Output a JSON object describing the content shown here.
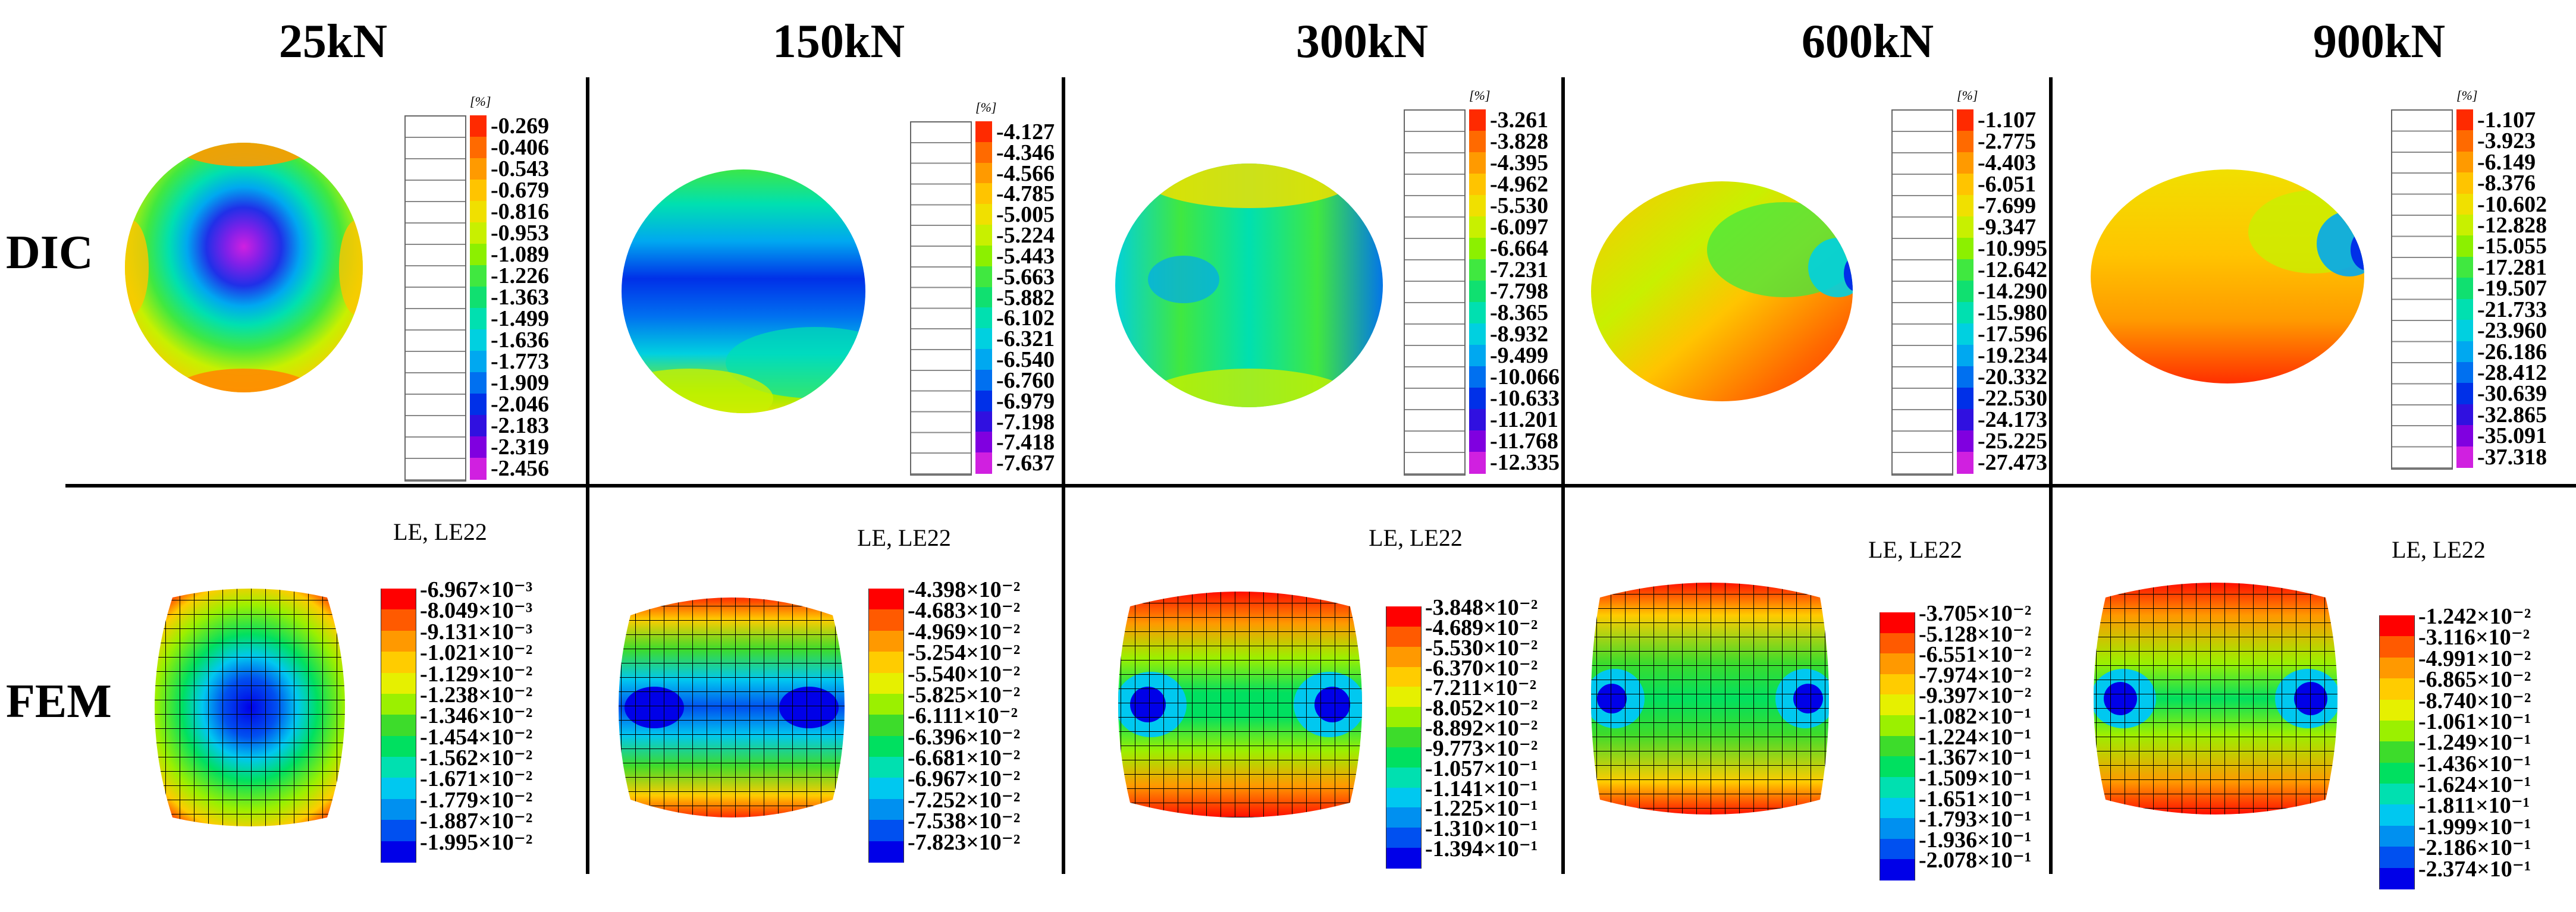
{
  "columns": [
    "25kN",
    "150kN",
    "300kN",
    "600kN",
    "900kN"
  ],
  "rows": {
    "dic": "DIC",
    "fem": "FEM"
  },
  "dic_unit": "[%]",
  "fem_title": "LE, LE22",
  "dic_legends": [
    [
      "-0.269",
      "-0.406",
      "-0.543",
      "-0.679",
      "-0.816",
      "-0.953",
      "-1.089",
      "-1.226",
      "-1.363",
      "-1.499",
      "-1.636",
      "-1.773",
      "-1.909",
      "-2.046",
      "-2.183",
      "-2.319",
      "-2.456"
    ],
    [
      "-4.127",
      "-4.346",
      "-4.566",
      "-4.785",
      "-5.005",
      "-5.224",
      "-5.443",
      "-5.663",
      "-5.882",
      "-6.102",
      "-6.321",
      "-6.540",
      "-6.760",
      "-6.979",
      "-7.198",
      "-7.418",
      "-7.637"
    ],
    [
      "-3.261",
      "-3.828",
      "-4.395",
      "-4.962",
      "-5.530",
      "-6.097",
      "-6.664",
      "-7.231",
      "-7.798",
      "-8.365",
      "-8.932",
      "-9.499",
      "-10.066",
      "-10.633",
      "-11.201",
      "-11.768",
      "-12.335"
    ],
    [
      "-1.107",
      "-2.775",
      "-4.403",
      "-6.051",
      "-7.699",
      "-9.347",
      "-10.995",
      "-12.642",
      "-14.290",
      "-15.980",
      "-17.596",
      "-19.234",
      "-20.332",
      "-22.530",
      "-24.173",
      "-25.225",
      "-27.473"
    ],
    [
      "-1.107",
      "-3.923",
      "-6.149",
      "-8.376",
      "-10.602",
      "-12.828",
      "-15.055",
      "-17.281",
      "-19.507",
      "-21.733",
      "-23.960",
      "-26.186",
      "-28.412",
      "-30.639",
      "-32.865",
      "-35.091",
      "-37.318"
    ]
  ],
  "fem_legends": [
    [
      "-6.967×10⁻³",
      "-8.049×10⁻³",
      "-9.131×10⁻³",
      "-1.021×10⁻²",
      "-1.129×10⁻²",
      "-1.238×10⁻²",
      "-1.346×10⁻²",
      "-1.454×10⁻²",
      "-1.562×10⁻²",
      "-1.671×10⁻²",
      "-1.779×10⁻²",
      "-1.887×10⁻²",
      "-1.995×10⁻²"
    ],
    [
      "-4.398×10⁻²",
      "-4.683×10⁻²",
      "-4.969×10⁻²",
      "-5.254×10⁻²",
      "-5.540×10⁻²",
      "-5.825×10⁻²",
      "-6.111×10⁻²",
      "-6.396×10⁻²",
      "-6.681×10⁻²",
      "-6.967×10⁻²",
      "-7.252×10⁻²",
      "-7.538×10⁻²",
      "-7.823×10⁻²"
    ],
    [
      "-3.848×10⁻²",
      "-4.689×10⁻²",
      "-5.530×10⁻²",
      "-6.370×10⁻²",
      "-7.211×10⁻²",
      "-8.052×10⁻²",
      "-8.892×10⁻²",
      "-9.773×10⁻²",
      "-1.057×10⁻¹",
      "-1.141×10⁻¹",
      "-1.225×10⁻¹",
      "-1.310×10⁻¹",
      "-1.394×10⁻¹"
    ],
    [
      "-3.705×10⁻²",
      "-5.128×10⁻²",
      "-6.551×10⁻²",
      "-7.974×10⁻²",
      "-9.397×10⁻²",
      "-1.082×10⁻¹",
      "-1.224×10⁻¹",
      "-1.367×10⁻¹",
      "-1.509×10⁻¹",
      "-1.651×10⁻¹",
      "-1.793×10⁻¹",
      "-1.936×10⁻¹",
      "-2.078×10⁻¹"
    ],
    [
      "-1.242×10⁻²",
      "-3.116×10⁻²",
      "-4.991×10⁻²",
      "-6.865×10⁻²",
      "-8.740×10⁻²",
      "-1.061×10⁻¹",
      "-1.249×10⁻¹",
      "-1.436×10⁻¹",
      "-1.624×10⁻¹",
      "-1.811×10⁻¹",
      "-1.999×10⁻¹",
      "-2.186×10⁻¹",
      "-2.374×10⁻¹"
    ]
  ],
  "colors": {
    "dic_scale": [
      "#ff2a00",
      "#ff6a00",
      "#ff9a00",
      "#ffc400",
      "#f0e000",
      "#c8f000",
      "#8cf000",
      "#40e840",
      "#10e070",
      "#00e0b0",
      "#00d0e0",
      "#00a8f0",
      "#0070f0",
      "#0030e8",
      "#3010e0",
      "#8000e0",
      "#d020e0"
    ],
    "fem_scale": [
      "#ff0000",
      "#ff5a00",
      "#ff9900",
      "#ffcc00",
      "#e6f000",
      "#9bf000",
      "#3ddc2b",
      "#00e060",
      "#00e0b0",
      "#00c8f0",
      "#0090f0",
      "#0050f0",
      "#0000e8"
    ]
  }
}
